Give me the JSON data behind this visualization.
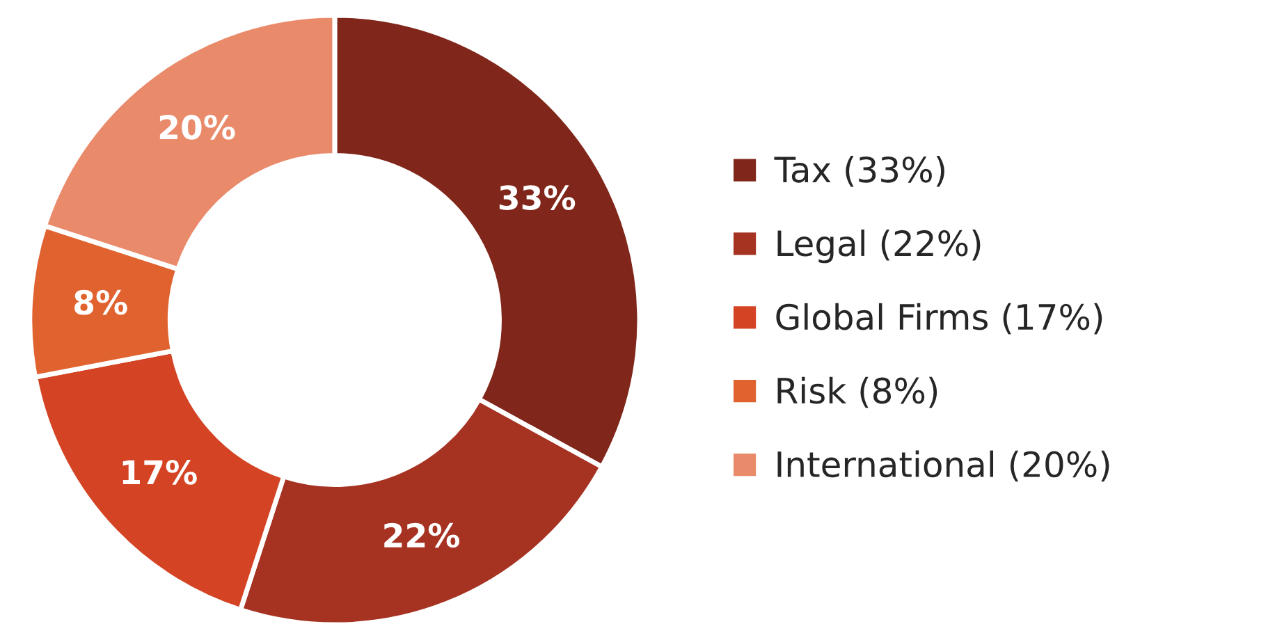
{
  "chart_data": {
    "type": "donut",
    "categories": [
      "Tax (33%)",
      "Legal (22%)",
      "Global Firms (17%)",
      "Risk (8%)",
      "International (20%)"
    ],
    "values": [
      33,
      22,
      17,
      8,
      20
    ],
    "colors": [
      "#80261a",
      "#a63222",
      "#d44323",
      "#e0632f",
      "#e98a6a"
    ],
    "value_labels": [
      "33%",
      "22%",
      "17%",
      "8%",
      "20%"
    ],
    "legend": "right"
  }
}
